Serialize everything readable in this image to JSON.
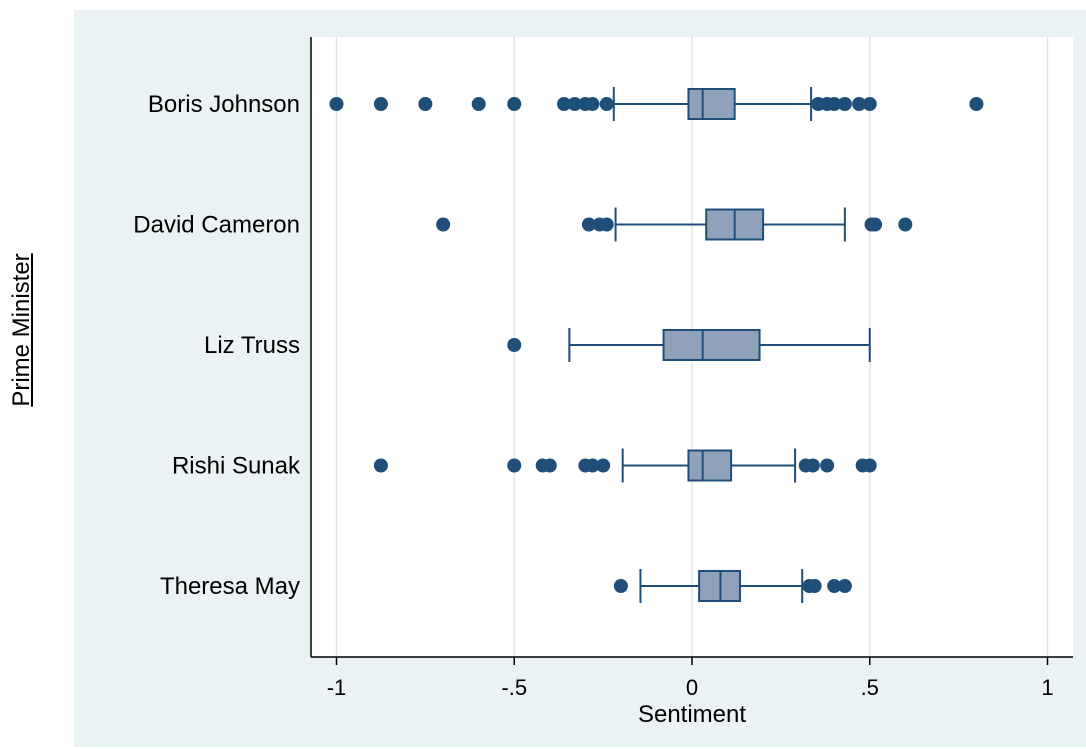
{
  "chart_data": {
    "type": "boxplot",
    "orientation": "horizontal",
    "xlabel": "Sentiment",
    "ylabel": "Prime Minister",
    "xlim": [
      -1.07,
      1.07
    ],
    "x_ticks": [
      {
        "value": -1,
        "label": "-1"
      },
      {
        "value": -0.5,
        "label": "-.5"
      },
      {
        "value": 0,
        "label": "0"
      },
      {
        "value": 0.5,
        "label": ".5"
      },
      {
        "value": 1,
        "label": "1"
      }
    ],
    "grid": "vertical",
    "colors": {
      "box_fill": "#8fa2b9",
      "box_stroke": "#1f4e79",
      "outlier": "#1f4e79",
      "background": "#eaf2f3",
      "grid": "#dde7e8"
    },
    "categories": [
      "Boris Johnson",
      "David Cameron",
      "Liz Truss",
      "Rishi Sunak",
      "Theresa May"
    ],
    "boxes": [
      {
        "name": "Boris Johnson",
        "whisker_low": -0.22,
        "q1": -0.01,
        "median": 0.03,
        "q3": 0.12,
        "whisker_high": 0.335,
        "outliers": [
          -1.0,
          -0.875,
          -0.75,
          -0.6,
          -0.5,
          -0.36,
          -0.33,
          -0.3,
          -0.28,
          -0.24,
          0.355,
          0.38,
          0.4,
          0.43,
          0.47,
          0.5,
          0.8
        ]
      },
      {
        "name": "David Cameron",
        "whisker_low": -0.215,
        "q1": 0.04,
        "median": 0.12,
        "q3": 0.2,
        "whisker_high": 0.43,
        "outliers": [
          -0.7,
          -0.29,
          -0.26,
          -0.24,
          0.505,
          0.515,
          0.6
        ]
      },
      {
        "name": "Liz Truss",
        "whisker_low": -0.345,
        "q1": -0.08,
        "median": 0.03,
        "q3": 0.19,
        "whisker_high": 0.5,
        "outliers": [
          -0.5
        ]
      },
      {
        "name": "Rishi Sunak",
        "whisker_low": -0.195,
        "q1": -0.01,
        "median": 0.03,
        "q3": 0.11,
        "whisker_high": 0.29,
        "outliers": [
          -0.875,
          -0.5,
          -0.42,
          -0.4,
          -0.3,
          -0.28,
          -0.25,
          0.32,
          0.34,
          0.38,
          0.48,
          0.5
        ]
      },
      {
        "name": "Theresa May",
        "whisker_low": -0.145,
        "q1": 0.02,
        "median": 0.08,
        "q3": 0.135,
        "whisker_high": 0.31,
        "outliers": [
          -0.2,
          0.33,
          0.345,
          0.4,
          0.43
        ]
      }
    ]
  }
}
